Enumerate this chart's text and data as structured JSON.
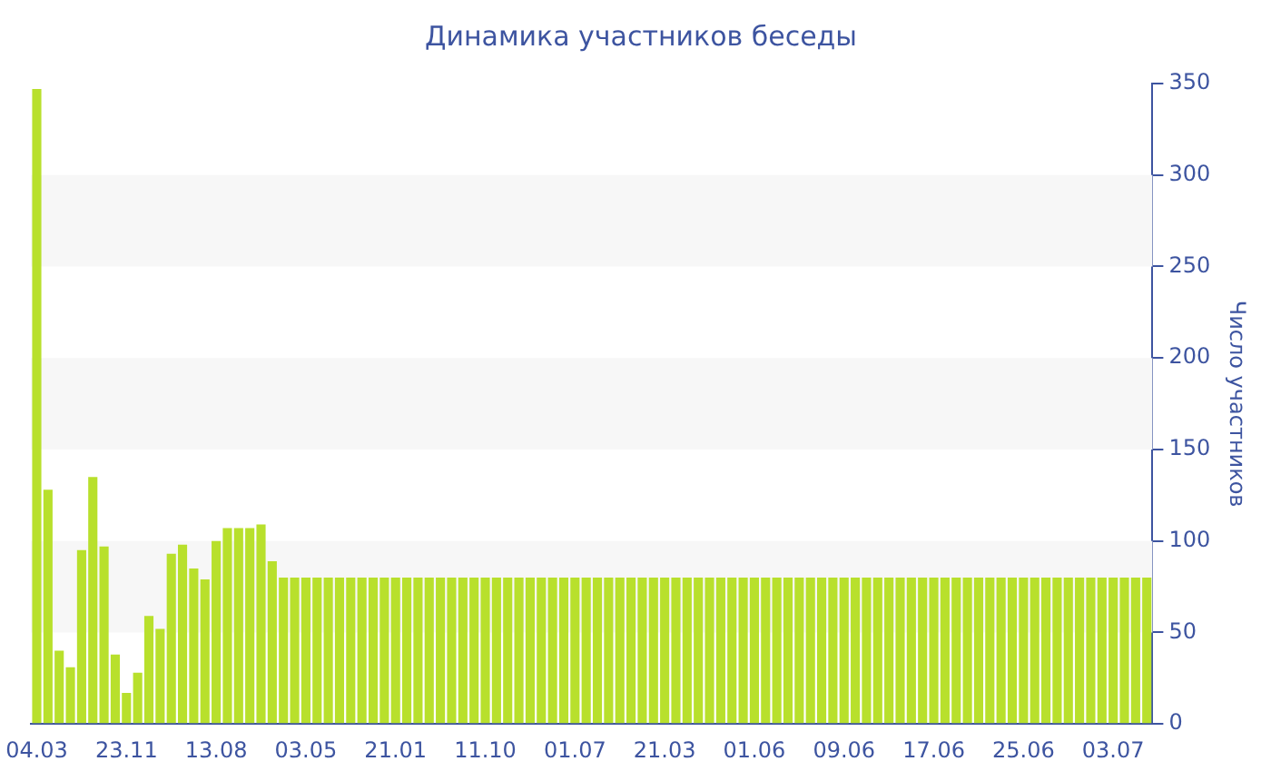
{
  "chart_data": {
    "type": "bar",
    "title": "Динамика участников беседы",
    "ylabel": "Число участников",
    "categories": [
      "04.03",
      null,
      null,
      null,
      null,
      null,
      null,
      null,
      "23.11",
      null,
      null,
      null,
      null,
      null,
      null,
      null,
      "13.08",
      null,
      null,
      null,
      null,
      null,
      null,
      null,
      "03.05",
      null,
      null,
      null,
      null,
      null,
      null,
      null,
      "21.01",
      null,
      null,
      null,
      null,
      null,
      null,
      null,
      "11.10",
      null,
      null,
      null,
      null,
      null,
      null,
      null,
      "01.07",
      null,
      null,
      null,
      null,
      null,
      null,
      null,
      "21.03",
      null,
      null,
      null,
      null,
      null,
      null,
      null,
      "01.06",
      null,
      null,
      null,
      null,
      null,
      null,
      null,
      "09.06",
      null,
      null,
      null,
      null,
      null,
      null,
      null,
      "17.06",
      null,
      null,
      null,
      null,
      null,
      null,
      null,
      "25.06",
      null,
      null,
      null,
      null,
      null,
      null,
      null,
      "03.07",
      null,
      null,
      null
    ],
    "values": [
      347,
      128,
      40,
      31,
      95,
      135,
      97,
      38,
      17,
      28,
      59,
      52,
      93,
      98,
      85,
      79,
      100,
      107,
      107,
      107,
      109,
      89,
      80,
      80,
      80,
      80,
      80,
      80,
      80,
      80,
      80,
      80,
      80,
      80,
      80,
      80,
      80,
      80,
      80,
      80,
      80,
      80,
      80,
      80,
      80,
      80,
      80,
      80,
      80,
      80,
      80,
      80,
      80,
      80,
      80,
      80,
      80,
      80,
      80,
      80,
      80,
      80,
      80,
      80,
      80,
      80,
      80,
      80,
      80,
      80,
      80,
      80,
      80,
      80,
      80,
      80,
      80,
      80,
      80,
      80,
      80,
      80,
      80,
      80,
      80,
      80,
      80,
      80,
      80,
      80,
      80,
      80,
      80,
      80,
      80,
      80,
      80,
      80,
      80,
      80
    ],
    "color": "#b8e02c",
    "ylim": [
      0,
      350
    ],
    "yticks": [
      0,
      50,
      100,
      150,
      200,
      250,
      300,
      350
    ],
    "bands": [
      {
        "axis": "y",
        "from": 50,
        "to": 100,
        "color": "#f7f7f7"
      },
      {
        "axis": "y",
        "from": 150,
        "to": 200,
        "color": "#f7f7f7"
      },
      {
        "axis": "y",
        "from": 250,
        "to": 300,
        "color": "#f7f7f7"
      }
    ]
  }
}
